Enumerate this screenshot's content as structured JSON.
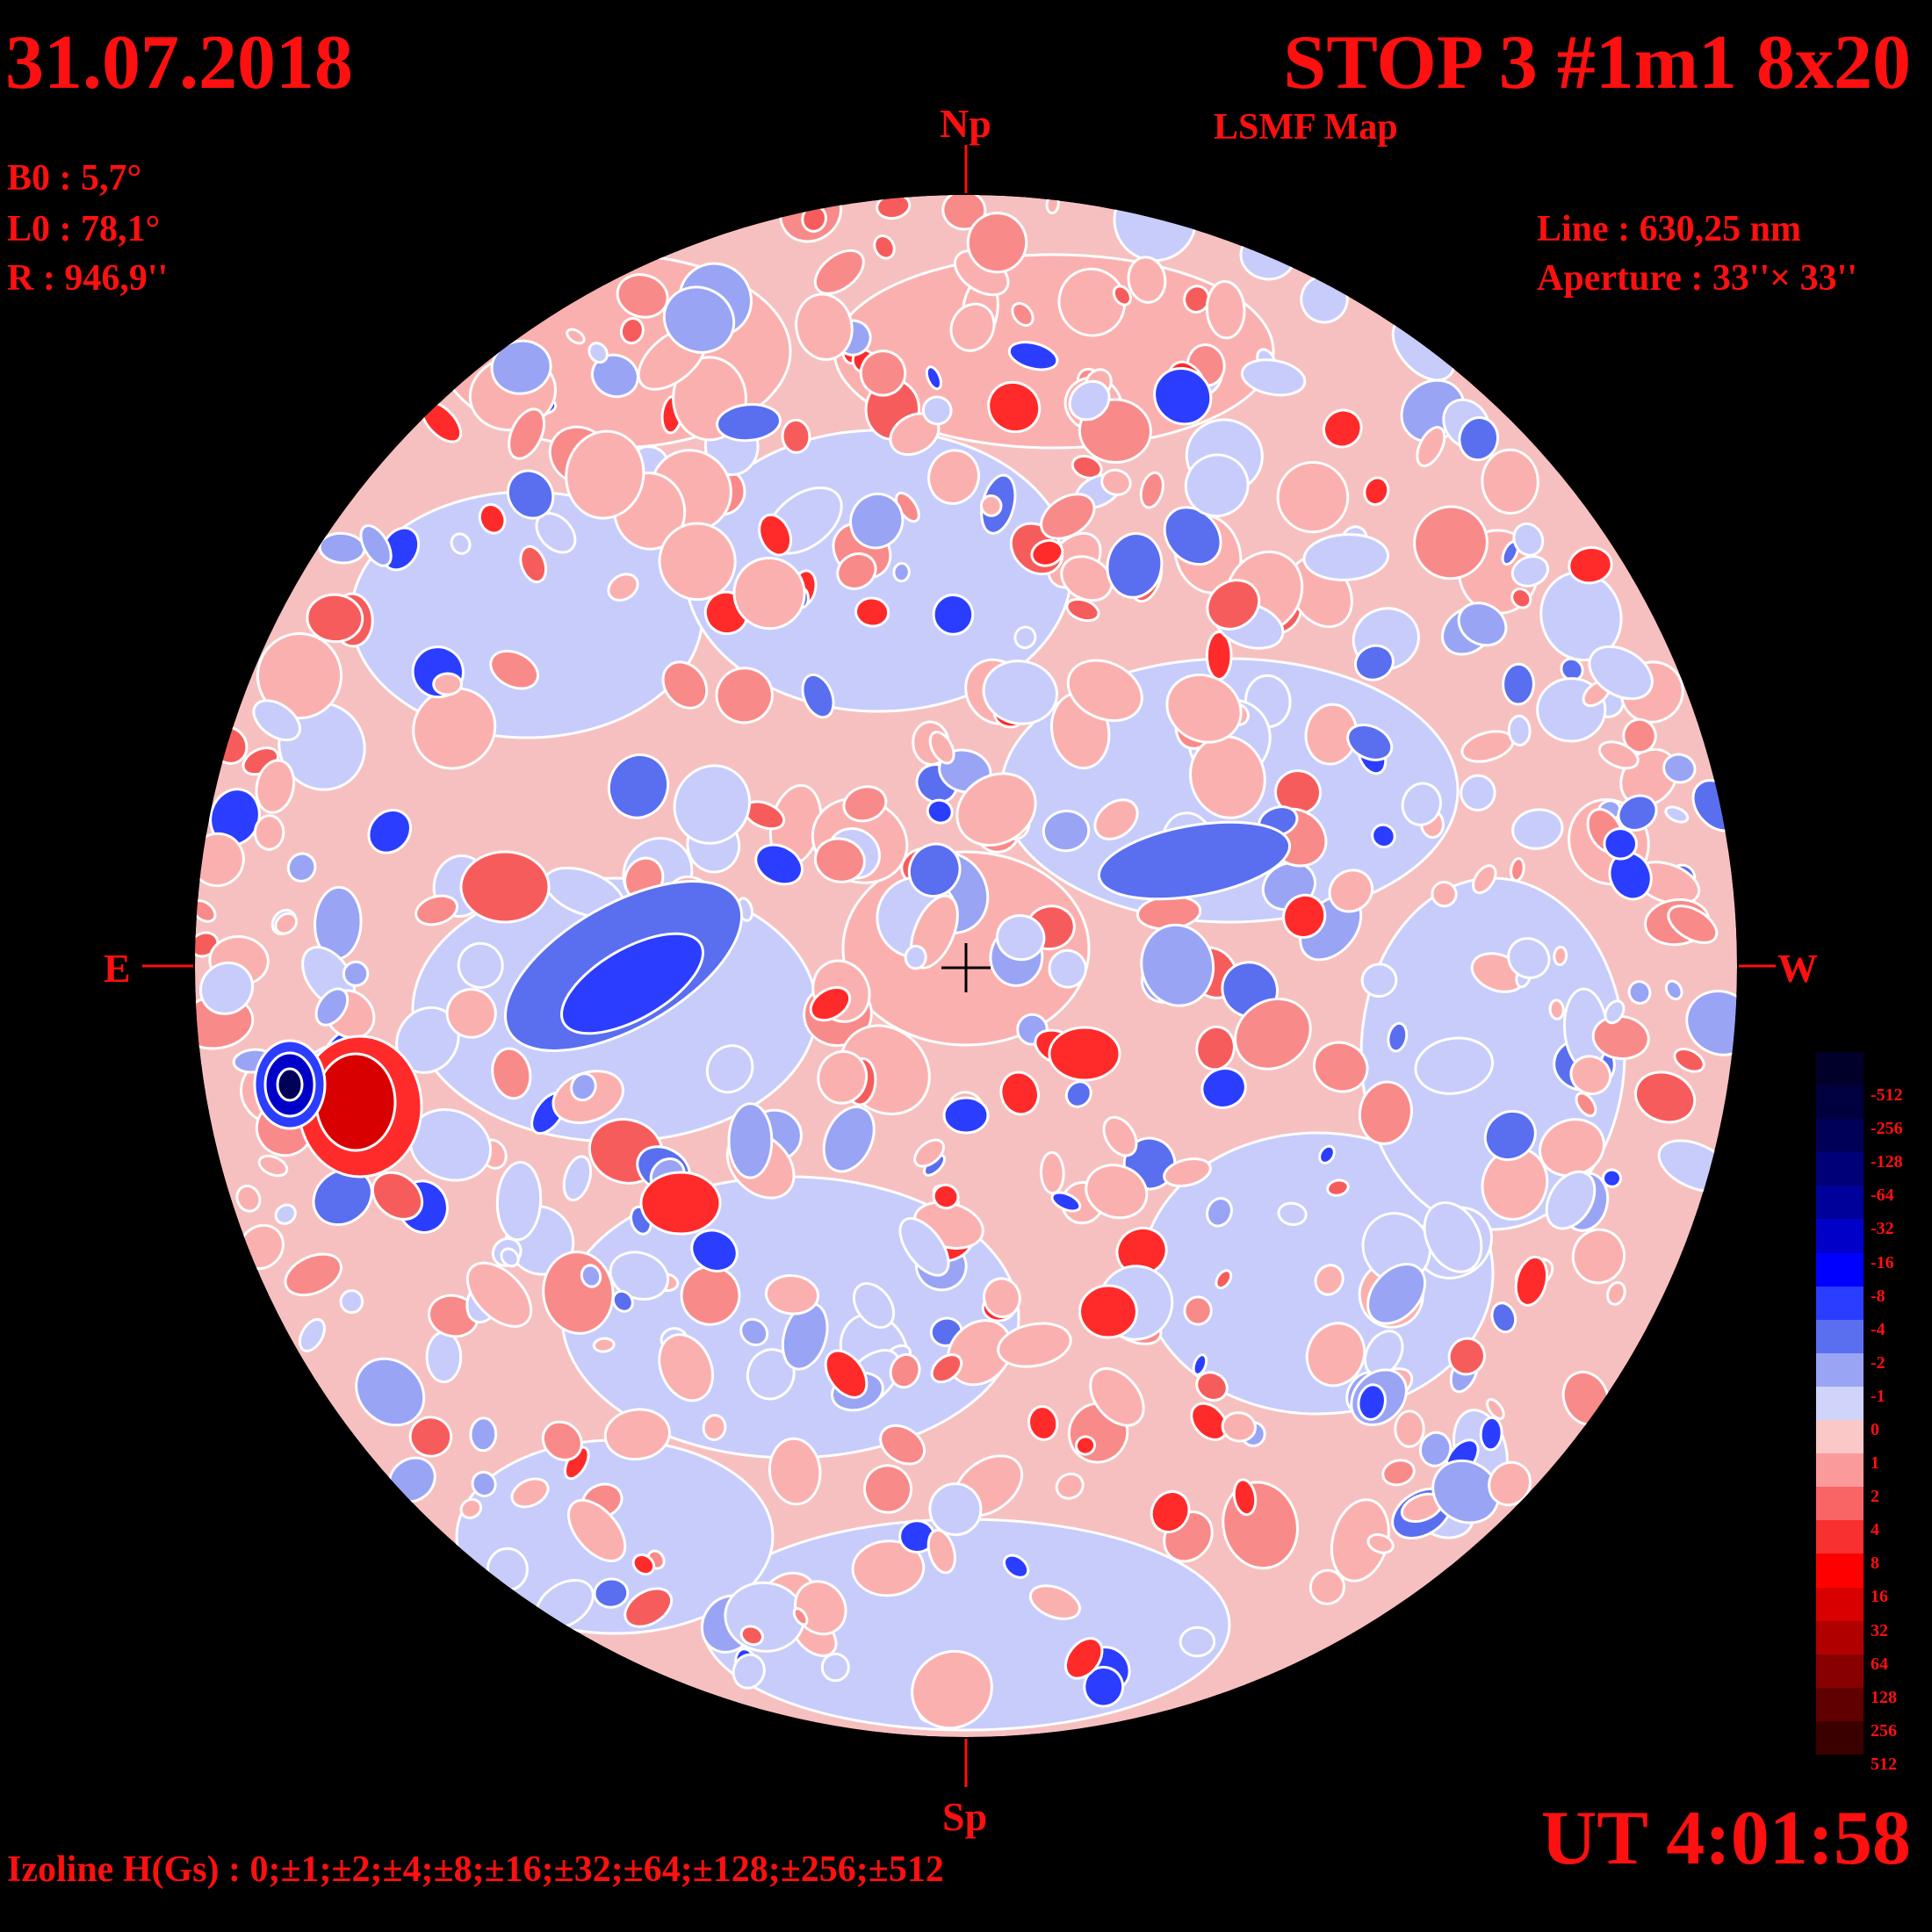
{
  "header": {
    "date": "31.07.2018",
    "title": "STOP 3 #1m1 8x20",
    "subtitle": "LSMF  Map"
  },
  "params": {
    "b0": "B0 : 5,7°",
    "l0": "L0 : 78,1°",
    "r": "R  : 946,9''",
    "line": "Line :  630,25 nm",
    "aperture": "Aperture : 33''× 33''"
  },
  "directions": {
    "north": "Np",
    "south": "Sp",
    "east": "E",
    "west": "W"
  },
  "time": "UT 4:01:58",
  "izoline": "Izoline H(Gs) : 0;±1;±2;±4;±8;±16;±32;±64;±128;±256;±512",
  "legend": {
    "labels": [
      "-512",
      "-256",
      "-128",
      "-64",
      "-32",
      "-16",
      "-8",
      "-4",
      "-2",
      "-1",
      "0",
      "1",
      "2",
      "4",
      "8",
      "16",
      "32",
      "64",
      "128",
      "256",
      "512"
    ],
    "colors": [
      "#00002a",
      "#00003f",
      "#000058",
      "#000078",
      "#00009a",
      "#0000c8",
      "#0000ff",
      "#2b3dff",
      "#5a6ef0",
      "#9aa4f5",
      "#d0d4fb",
      "#fbc8c8",
      "#fb9a9a",
      "#f96464",
      "#f83030",
      "#ff0000",
      "#d80000",
      "#b00000",
      "#880000",
      "#600000",
      "#3a0000"
    ]
  },
  "colors": {
    "text": "#ff1010",
    "background": "#000000",
    "disk_base": "#f7c0c0",
    "contour": "#ffffff"
  }
}
